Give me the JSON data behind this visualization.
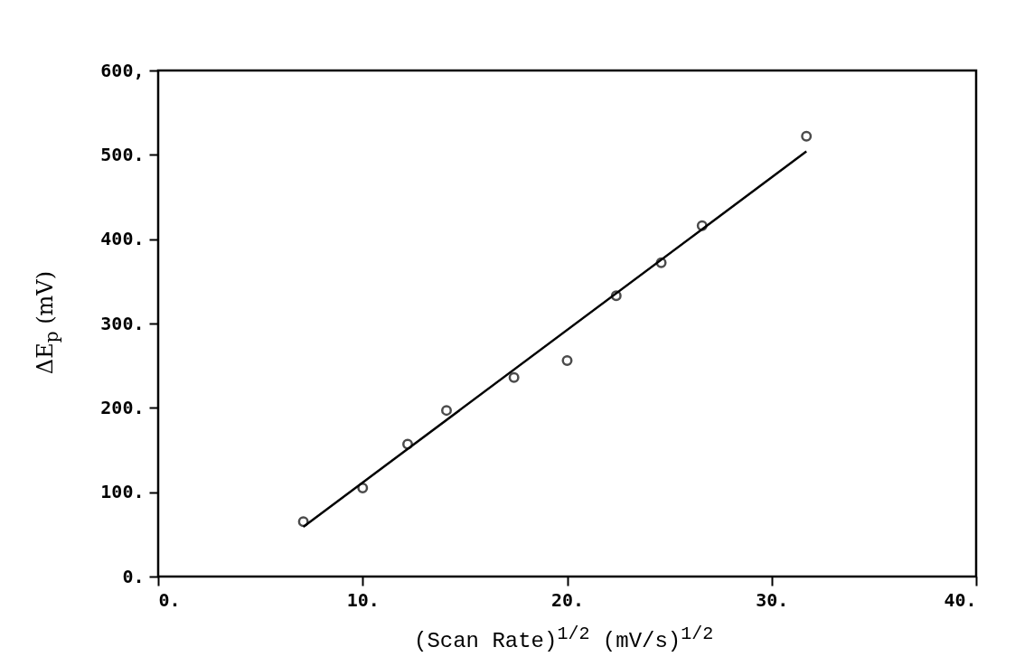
{
  "chart_data": {
    "type": "scatter",
    "xlabel": "(Scan Rate)$^{1/2}$  (mV/s)$^{1/2}$",
    "ylabel": "ΔE$_{p}$ (mV)",
    "xlim": [
      0,
      40
    ],
    "ylim": [
      0,
      600
    ],
    "xticks": [
      {
        "value": 0,
        "label": "0."
      },
      {
        "value": 10,
        "label": "10."
      },
      {
        "value": 20,
        "label": "20."
      },
      {
        "value": 30,
        "label": "30."
      },
      {
        "value": 40,
        "label": "40."
      }
    ],
    "yticks": [
      {
        "value": 0,
        "label": "0."
      },
      {
        "value": 100,
        "label": "100."
      },
      {
        "value": 200,
        "label": "200."
      },
      {
        "value": 300,
        "label": "300."
      },
      {
        "value": 400,
        "label": "400."
      },
      {
        "value": 500,
        "label": "500."
      },
      {
        "value": 600,
        "label": "600,"
      }
    ],
    "series": [
      {
        "marker": "circle",
        "color": "#000000",
        "x": [
          7.1,
          10.0,
          12.2,
          14.1,
          17.4,
          20.0,
          22.4,
          24.6,
          26.6,
          31.7
        ],
        "values": [
          65,
          105,
          157,
          197,
          236,
          256,
          333,
          372,
          416,
          522
        ]
      },
      {
        "type": "line",
        "color": "#000000",
        "x": [
          7.1,
          31.7
        ],
        "values": [
          59,
          504
        ]
      }
    ]
  }
}
